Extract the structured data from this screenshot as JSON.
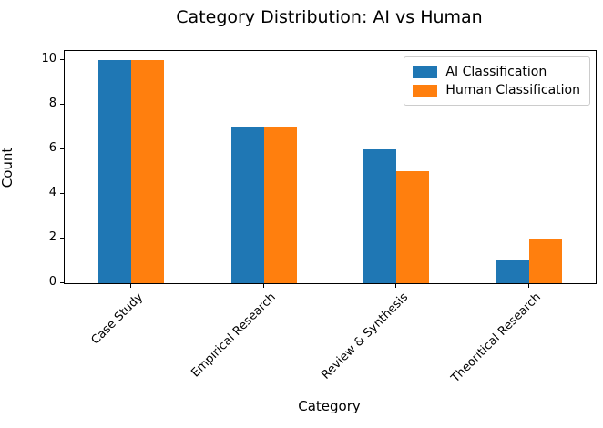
{
  "chart_data": {
    "type": "bar",
    "title": "Category Distribution: AI vs Human",
    "xlabel": "Category",
    "ylabel": "Count",
    "categories": [
      "Case Study",
      "Empirical Research",
      "Review & Synthesis",
      "Theoritical Research"
    ],
    "series": [
      {
        "name": "AI Classification",
        "color": "#1f77b4",
        "values": [
          10,
          7,
          6,
          1
        ]
      },
      {
        "name": "Human Classification",
        "color": "#ff7f0e",
        "values": [
          10,
          7,
          5,
          2
        ]
      }
    ],
    "ylim": [
      0,
      10.4
    ],
    "yticks": [
      0,
      2,
      4,
      6,
      8,
      10
    ],
    "xtick_rotation_deg": 45,
    "grid": false,
    "legend_position": "upper right",
    "bar_width_fraction": 0.25,
    "colors": {
      "axis": "#000000",
      "text": "#000000",
      "legend_border": "#cccccc",
      "background": "#ffffff"
    }
  }
}
